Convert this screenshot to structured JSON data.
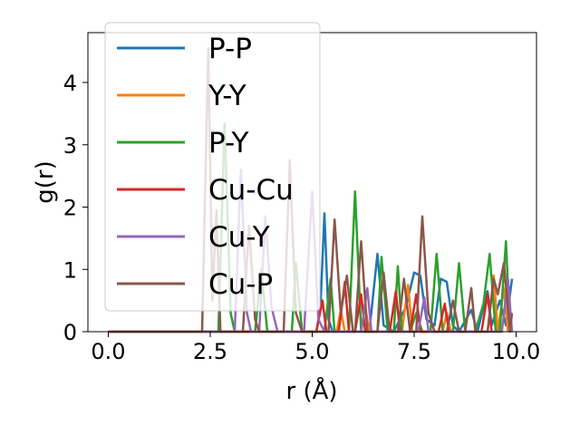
{
  "chart_data": {
    "type": "line",
    "title": "",
    "xlabel": "r (Å)",
    "ylabel": "g(r)",
    "xlim": [
      -0.5,
      10.5
    ],
    "ylim": [
      0,
      4.8
    ],
    "xticks": [
      0.0,
      2.5,
      5.0,
      7.5,
      10.0
    ],
    "xtick_labels": [
      "0.0",
      "2.5",
      "5.0",
      "7.5",
      "10.0"
    ],
    "yticks": [
      0,
      1,
      2,
      3,
      4
    ],
    "ytick_labels": [
      "0",
      "1",
      "2",
      "3",
      "4"
    ],
    "grid": false,
    "legend_position": "top-left",
    "series": [
      {
        "name": "P-P",
        "color": "#1f77b4",
        "points": [
          [
            0,
            0
          ],
          [
            5.1,
            0
          ],
          [
            5.2,
            0.35
          ],
          [
            5.3,
            1.9
          ],
          [
            5.4,
            0.2
          ],
          [
            5.5,
            0
          ],
          [
            6.4,
            0
          ],
          [
            6.6,
            1.25
          ],
          [
            6.75,
            0.1
          ],
          [
            7.0,
            0
          ],
          [
            7.3,
            0.4
          ],
          [
            7.5,
            0.95
          ],
          [
            7.65,
            0.9
          ],
          [
            7.8,
            0.2
          ],
          [
            8.0,
            0.1
          ],
          [
            8.15,
            0.85
          ],
          [
            8.3,
            0.8
          ],
          [
            8.45,
            0.1
          ],
          [
            8.6,
            0
          ],
          [
            8.9,
            0.35
          ],
          [
            9.05,
            0
          ],
          [
            9.3,
            0.65
          ],
          [
            9.4,
            0.1
          ],
          [
            9.6,
            0.5
          ],
          [
            9.75,
            0.1
          ],
          [
            9.9,
            0.85
          ]
        ]
      },
      {
        "name": "Y-Y",
        "color": "#ff7f0e",
        "points": [
          [
            0,
            0
          ],
          [
            5.6,
            0
          ],
          [
            5.7,
            0.35
          ],
          [
            5.8,
            0
          ],
          [
            6.2,
            0
          ],
          [
            6.3,
            0.4
          ],
          [
            6.4,
            0
          ],
          [
            7.2,
            0
          ],
          [
            7.35,
            0.75
          ],
          [
            7.45,
            0
          ],
          [
            8.2,
            0
          ],
          [
            8.3,
            0.3
          ],
          [
            8.4,
            0
          ],
          [
            9.3,
            0
          ],
          [
            9.45,
            0.9
          ],
          [
            9.55,
            0
          ],
          [
            9.7,
            0.7
          ],
          [
            9.8,
            0
          ]
        ]
      },
      {
        "name": "P-Y",
        "color": "#2ca02c",
        "points": [
          [
            0,
            0
          ],
          [
            2.7,
            0
          ],
          [
            2.85,
            3.35
          ],
          [
            3.0,
            0.3
          ],
          [
            3.1,
            0
          ],
          [
            3.6,
            0
          ],
          [
            3.75,
            1.0
          ],
          [
            3.9,
            0
          ],
          [
            4.5,
            0
          ],
          [
            4.6,
            1.1
          ],
          [
            4.75,
            0
          ],
          [
            5.3,
            0
          ],
          [
            5.45,
            0.85
          ],
          [
            5.55,
            0
          ],
          [
            5.9,
            0
          ],
          [
            6.05,
            2.25
          ],
          [
            6.2,
            0
          ],
          [
            6.6,
            0
          ],
          [
            6.7,
            1.2
          ],
          [
            6.85,
            0
          ],
          [
            7.0,
            0
          ],
          [
            7.1,
            1.05
          ],
          [
            7.2,
            0
          ],
          [
            7.4,
            0
          ],
          [
            7.55,
            0.3
          ],
          [
            7.7,
            0
          ],
          [
            7.9,
            0
          ],
          [
            8.05,
            1.25
          ],
          [
            8.2,
            0
          ],
          [
            8.45,
            0
          ],
          [
            8.6,
            1.1
          ],
          [
            8.75,
            0
          ],
          [
            9.0,
            0
          ],
          [
            9.2,
            0.45
          ],
          [
            9.35,
            1.25
          ],
          [
            9.5,
            0
          ],
          [
            9.6,
            0
          ],
          [
            9.75,
            1.45
          ],
          [
            9.85,
            0
          ]
        ]
      },
      {
        "name": "Cu-Cu",
        "color": "#d62728",
        "points": [
          [
            0,
            0
          ],
          [
            5.1,
            0
          ],
          [
            5.25,
            0.5
          ],
          [
            5.35,
            0
          ],
          [
            5.65,
            0
          ],
          [
            5.8,
            0.8
          ],
          [
            5.9,
            0
          ],
          [
            6.05,
            0
          ],
          [
            6.2,
            0.6
          ],
          [
            6.3,
            0
          ],
          [
            6.9,
            0
          ],
          [
            7.05,
            0.65
          ],
          [
            7.15,
            0
          ],
          [
            7.4,
            0
          ],
          [
            7.55,
            0.6
          ],
          [
            7.65,
            0
          ],
          [
            8.1,
            0
          ],
          [
            8.25,
            0.45
          ],
          [
            8.35,
            0
          ],
          [
            9.15,
            0
          ],
          [
            9.3,
            0.6
          ],
          [
            9.4,
            0
          ]
        ]
      },
      {
        "name": "Cu-Y",
        "color": "#9467bd",
        "points": [
          [
            0,
            0
          ],
          [
            3.1,
            0
          ],
          [
            3.25,
            2.6
          ],
          [
            3.4,
            0.3
          ],
          [
            3.5,
            0
          ],
          [
            3.7,
            0
          ],
          [
            3.85,
            1.85
          ],
          [
            4.0,
            0.4
          ],
          [
            4.15,
            0
          ],
          [
            4.8,
            0
          ],
          [
            5.0,
            2.25
          ],
          [
            5.15,
            0.2
          ],
          [
            5.3,
            0
          ],
          [
            6.2,
            0
          ],
          [
            6.35,
            0.7
          ],
          [
            6.45,
            0
          ],
          [
            7.6,
            0
          ],
          [
            7.75,
            0.55
          ],
          [
            7.85,
            0
          ],
          [
            9.65,
            0
          ],
          [
            9.8,
            0.85
          ],
          [
            9.9,
            0
          ]
        ]
      },
      {
        "name": "Cu-P",
        "color": "#8c564b",
        "points": [
          [
            0,
            0
          ],
          [
            2.3,
            0
          ],
          [
            2.45,
            4.55
          ],
          [
            2.55,
            0.5
          ],
          [
            2.65,
            1.95
          ],
          [
            2.75,
            0
          ],
          [
            3.3,
            0
          ],
          [
            3.45,
            1.7
          ],
          [
            3.6,
            0.2
          ],
          [
            3.7,
            0
          ],
          [
            4.3,
            0
          ],
          [
            4.45,
            2.75
          ],
          [
            4.6,
            0.3
          ],
          [
            4.75,
            0
          ],
          [
            5.4,
            0
          ],
          [
            5.55,
            1.8
          ],
          [
            5.7,
            0.3
          ],
          [
            5.85,
            0.9
          ],
          [
            6.0,
            0
          ],
          [
            6.05,
            0
          ],
          [
            6.2,
            1.45
          ],
          [
            6.35,
            0
          ],
          [
            6.6,
            0
          ],
          [
            6.75,
            0.95
          ],
          [
            6.9,
            0
          ],
          [
            7.1,
            0
          ],
          [
            7.25,
            0.85
          ],
          [
            7.4,
            0
          ],
          [
            7.55,
            0
          ],
          [
            7.7,
            1.85
          ],
          [
            7.85,
            0.3
          ],
          [
            8.0,
            0
          ],
          [
            8.3,
            0
          ],
          [
            8.45,
            0.5
          ],
          [
            8.6,
            0
          ],
          [
            8.75,
            0
          ],
          [
            8.9,
            0.7
          ],
          [
            9.0,
            0
          ],
          [
            9.3,
            0
          ],
          [
            9.45,
            0.85
          ],
          [
            9.55,
            0.6
          ],
          [
            9.7,
            1.1
          ],
          [
            9.85,
            0
          ],
          [
            9.9,
            0.3
          ]
        ]
      }
    ]
  }
}
